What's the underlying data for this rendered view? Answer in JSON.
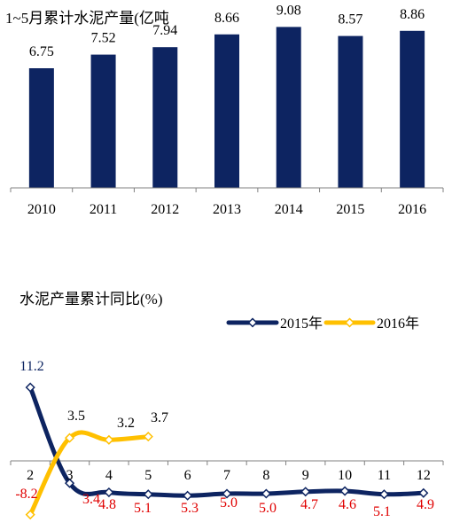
{
  "charts": [
    {
      "title": "1~5月累计水泥产量(亿吨",
      "chart_data": {
        "type": "bar",
        "categories": [
          "2010",
          "2011",
          "2012",
          "2013",
          "2014",
          "2015",
          "2016"
        ],
        "values": [
          6.75,
          7.52,
          7.94,
          8.66,
          9.08,
          8.57,
          8.86
        ],
        "value_labels": [
          "6.75",
          "7.52",
          "7.94",
          "8.66",
          "9.08",
          "8.57",
          "8.86"
        ],
        "xlabel": "",
        "ylabel": "",
        "ylim": [
          0,
          10
        ],
        "grid": false,
        "bar_color": "#0d2461"
      }
    },
    {
      "title": "水泥产量累计同比(%)",
      "chart_data": {
        "type": "line",
        "x": [
          "2",
          "3",
          "4",
          "5",
          "6",
          "7",
          "8",
          "9",
          "10",
          "11",
          "12"
        ],
        "series": [
          {
            "name": "2015年",
            "color": "#0d2461",
            "label_color": "#0d2461",
            "values": [
              11.2,
              -3.4,
              -4.8,
              -5.1,
              -5.3,
              -5.0,
              -5.0,
              -4.7,
              -4.6,
              -5.1,
              -4.9
            ],
            "labels": [
              "11.2",
              "3.4",
              "4.8",
              "5.1",
              "5.3",
              "5.0",
              "5.0",
              "4.7",
              "4.6",
              "5.1",
              "4.9"
            ],
            "label_colors": [
              "#0d2461",
              "#e00000",
              "#e00000",
              "#e00000",
              "#e00000",
              "#e00000",
              "#e00000",
              "#e00000",
              "#e00000",
              "#e00000",
              "#e00000"
            ]
          },
          {
            "name": "2016年",
            "color": "#ffc000",
            "values": [
              -8.2,
              3.5,
              3.2,
              3.7,
              null,
              null,
              null,
              null,
              null,
              null,
              null
            ],
            "labels": [
              "-8.2",
              "3.5",
              "3.2",
              "3.7"
            ],
            "label_colors": [
              "#e00000",
              "#000000",
              "#000000",
              "#000000"
            ]
          }
        ],
        "ylim": [
          -10,
          14
        ],
        "legend": "top-right",
        "grid": false
      }
    }
  ]
}
